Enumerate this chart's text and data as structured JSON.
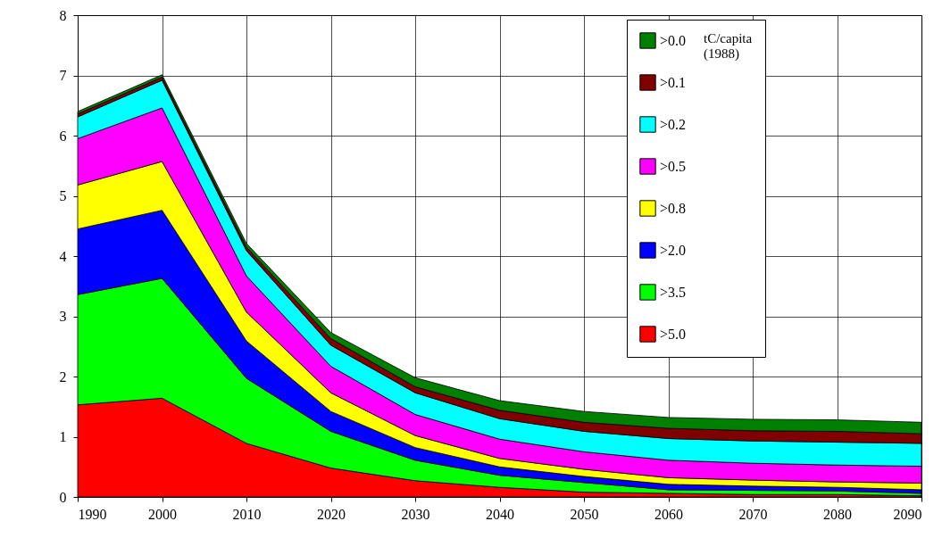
{
  "chart_data": {
    "type": "area",
    "stacked": true,
    "legend_title": "tC/capita (1988)",
    "legend": "top right",
    "grid": true,
    "x": [
      1990,
      2000,
      2010,
      2020,
      2030,
      2040,
      2050,
      2060,
      2070,
      2080,
      2090
    ],
    "xlim": [
      1990,
      2090
    ],
    "xticks": [
      1990,
      2000,
      2010,
      2020,
      2030,
      2040,
      2050,
      2060,
      2070,
      2080,
      2090
    ],
    "ylim": [
      0,
      8
    ],
    "yticks": [
      0,
      1,
      2,
      3,
      4,
      5,
      6,
      7,
      8
    ],
    "series": [
      {
        "name": ">5.0",
        "color": "#ff0000",
        "values": [
          1.53,
          1.64,
          0.89,
          0.48,
          0.27,
          0.16,
          0.08,
          0.06,
          0.04,
          0.04,
          0.02
        ]
      },
      {
        "name": ">3.5",
        "color": "#00ff00",
        "values": [
          1.83,
          1.99,
          1.08,
          0.61,
          0.34,
          0.2,
          0.16,
          0.06,
          0.07,
          0.06,
          0.04
        ]
      },
      {
        "name": ">2.0",
        "color": "#0000ff",
        "values": [
          1.09,
          1.13,
          0.62,
          0.33,
          0.21,
          0.14,
          0.1,
          0.09,
          0.07,
          0.06,
          0.06
        ]
      },
      {
        "name": ">0.8",
        "color": "#ffff00",
        "values": [
          0.73,
          0.81,
          0.48,
          0.31,
          0.2,
          0.14,
          0.12,
          0.11,
          0.1,
          0.09,
          0.11
        ]
      },
      {
        "name": ">0.5",
        "color": "#ff00ff",
        "values": [
          0.77,
          0.89,
          0.6,
          0.44,
          0.35,
          0.32,
          0.29,
          0.29,
          0.28,
          0.28,
          0.28
        ]
      },
      {
        "name": ">0.2",
        "color": "#00ffff",
        "values": [
          0.36,
          0.46,
          0.42,
          0.35,
          0.36,
          0.34,
          0.34,
          0.36,
          0.37,
          0.38,
          0.38
        ]
      },
      {
        "name": ">0.1",
        "color": "#800000",
        "values": [
          0.05,
          0.05,
          0.06,
          0.11,
          0.1,
          0.14,
          0.15,
          0.17,
          0.17,
          0.18,
          0.16
        ]
      },
      {
        "name": ">0.0",
        "color": "#008000",
        "values": [
          0.04,
          0.04,
          0.06,
          0.1,
          0.15,
          0.16,
          0.18,
          0.18,
          0.19,
          0.19,
          0.19
        ]
      }
    ]
  }
}
